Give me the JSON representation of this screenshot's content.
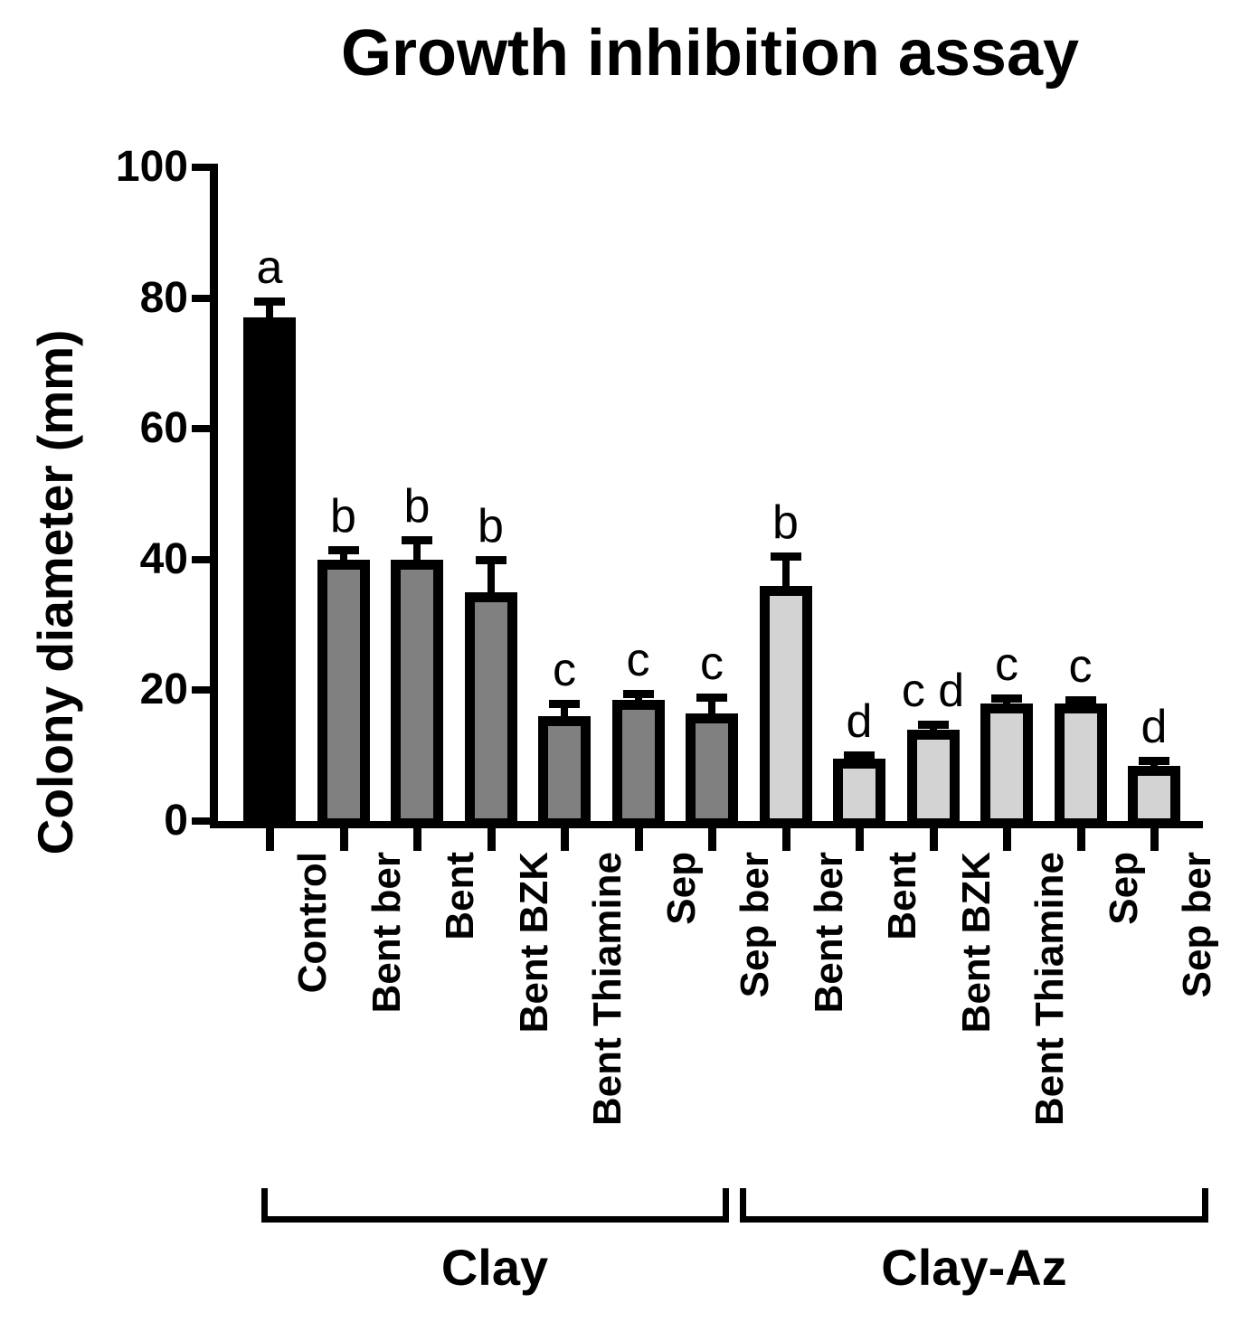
{
  "chart_data": {
    "type": "bar",
    "title": "Growth inhibition assay",
    "ylabel": "Colony diameter (mm)",
    "xlabel": "",
    "ylim": [
      0,
      100
    ],
    "yticks": [
      0,
      20,
      40,
      60,
      80,
      100
    ],
    "grid": false,
    "legend": "none",
    "bar_outline_color": "#000000",
    "groups": [
      {
        "label": "Clay",
        "fill": "#808080",
        "bars": [
          {
            "label": "Control",
            "value": 77,
            "error": 2.5,
            "letter": "a",
            "fill": "#000000"
          },
          {
            "label": "Bent ber",
            "value": 40,
            "error": 1.5,
            "letter": "b",
            "fill": "#808080"
          },
          {
            "label": "Bent",
            "value": 40,
            "error": 3,
            "letter": "b",
            "fill": "#808080"
          },
          {
            "label": "Bent BZK",
            "value": 35,
            "error": 5,
            "letter": "b",
            "fill": "#808080"
          },
          {
            "label": "Bent Thiamine",
            "value": 16,
            "error": 2,
            "letter": "c",
            "fill": "#808080"
          },
          {
            "label": "Sep",
            "value": 18.5,
            "error": 1,
            "letter": "c",
            "fill": "#808080"
          },
          {
            "label": "Sep ber",
            "value": 16.5,
            "error": 2.5,
            "letter": "c",
            "fill": "#808080"
          }
        ]
      },
      {
        "label": "Clay-Az",
        "fill": "#d3d3d3",
        "bars": [
          {
            "label": "Bent ber",
            "value": 36,
            "error": 4.5,
            "letter": "b",
            "fill": "#d3d3d3"
          },
          {
            "label": "Bent",
            "value": 9.5,
            "error": 0.6,
            "letter": "d",
            "fill": "#d3d3d3"
          },
          {
            "label": "Bent BZK",
            "value": 14,
            "error": 0.8,
            "letter": "c d",
            "fill": "#d3d3d3"
          },
          {
            "label": "Bent Thiamine",
            "value": 18,
            "error": 0.8,
            "letter": "c",
            "fill": "#d3d3d3"
          },
          {
            "label": "Sep",
            "value": 18,
            "error": 0.6,
            "letter": "c",
            "fill": "#d3d3d3"
          },
          {
            "label": "Sep ber",
            "value": 8.5,
            "error": 0.8,
            "letter": "d",
            "fill": "#d3d3d3"
          }
        ]
      }
    ]
  }
}
